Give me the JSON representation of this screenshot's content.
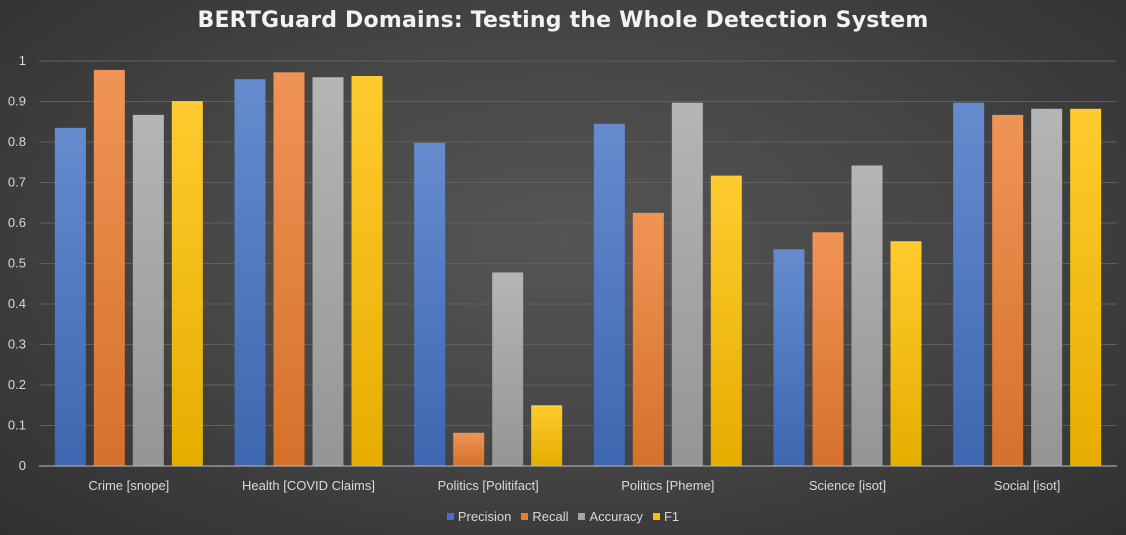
{
  "chart_data": {
    "type": "bar",
    "title": "BERTGuard Domains: Testing the Whole Detection System",
    "xlabel": "",
    "ylabel": "",
    "ylim": [
      0,
      1
    ],
    "yticks": [
      "0",
      "0.1",
      "0.2",
      "0.3",
      "0.4",
      "0.5",
      "0.6",
      "0.7",
      "0.8",
      "0.9",
      "1"
    ],
    "grid": true,
    "legend_position": "bottom",
    "categories": [
      "Crime [snope]",
      "Health [COVID Claims]",
      "Politics [Politifact]",
      "Politics [Pheme]",
      "Science [isot]",
      "Social [isot]"
    ],
    "series": [
      {
        "name": "Precision",
        "color": "#4472c4",
        "values": [
          0.835,
          0.955,
          0.798,
          0.845,
          0.535,
          0.897
        ]
      },
      {
        "name": "Recall",
        "color": "#ed7d31",
        "values": [
          0.978,
          0.972,
          0.082,
          0.625,
          0.577,
          0.867
        ]
      },
      {
        "name": "Accuracy",
        "color": "#a5a5a5",
        "values": [
          0.867,
          0.96,
          0.478,
          0.897,
          0.742,
          0.882
        ]
      },
      {
        "name": "F1",
        "color": "#ffc000",
        "values": [
          0.901,
          0.963,
          0.15,
          0.717,
          0.555,
          0.882
        ]
      }
    ]
  }
}
